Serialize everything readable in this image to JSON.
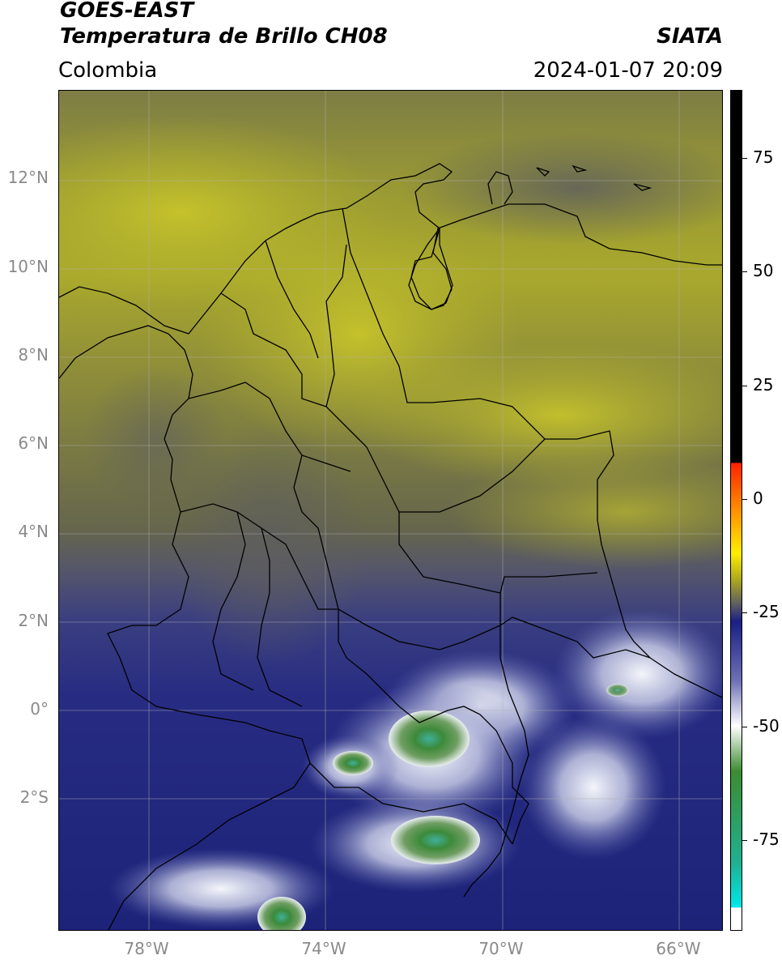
{
  "header": {
    "satellite": "GOES-EAST",
    "product": "Temperatura de Brillo CH08",
    "region": "Colombia",
    "org": "SIATA",
    "datetime": "2024-01-07 20:09"
  },
  "map": {
    "lat_range": [
      -5.0,
      14.0
    ],
    "lon_range": [
      -80.0,
      -65.0
    ],
    "grid": true,
    "y_ticks": [
      {
        "lat": 12,
        "label": "12°N"
      },
      {
        "lat": 10,
        "label": "10°N"
      },
      {
        "lat": 8,
        "label": "8°N"
      },
      {
        "lat": 6,
        "label": "6°N"
      },
      {
        "lat": 4,
        "label": "4°N"
      },
      {
        "lat": 2,
        "label": "2°N"
      },
      {
        "lat": 0,
        "label": "0°"
      },
      {
        "lat": -2,
        "label": "2°S"
      }
    ],
    "x_ticks": [
      {
        "lon": -78,
        "label": "78°W"
      },
      {
        "lon": -74,
        "label": "74°W"
      },
      {
        "lon": -70,
        "label": "70°W"
      },
      {
        "lon": -66,
        "label": "66°W"
      }
    ],
    "colors": {
      "warm_yellow": "#b5b42a",
      "olive": "#8a8a40",
      "gray": "#5a5a5a",
      "slate_blue": "#3f4383",
      "deep_blue": "#1d237c",
      "white_cloud": "#e6e9f4",
      "green_core": "#3c8a3a",
      "teal_core": "#34b59a"
    }
  },
  "colorbar": {
    "range": [
      -95,
      90
    ],
    "ticks": [
      {
        "value": 75,
        "label": "75"
      },
      {
        "value": 50,
        "label": "50"
      },
      {
        "value": 25,
        "label": "25"
      },
      {
        "value": 0,
        "label": "0"
      },
      {
        "value": -25,
        "label": "-25"
      },
      {
        "value": -50,
        "label": "-50"
      },
      {
        "value": -75,
        "label": "-75"
      }
    ],
    "stops": [
      {
        "value": 90,
        "color": "#000000"
      },
      {
        "value": 8,
        "color": "#000000"
      },
      {
        "value": 7.9,
        "color": "#ff2200"
      },
      {
        "value": 0,
        "color": "#ff7700"
      },
      {
        "value": -12,
        "color": "#ffee00"
      },
      {
        "value": -18,
        "color": "#aaa420"
      },
      {
        "value": -23,
        "color": "#606060"
      },
      {
        "value": -27,
        "color": "#1a1f85"
      },
      {
        "value": -40,
        "color": "#6c70b4"
      },
      {
        "value": -50,
        "color": "#ffffff"
      },
      {
        "value": -60,
        "color": "#3c8c30"
      },
      {
        "value": -80,
        "color": "#20b090"
      },
      {
        "value": -90,
        "color": "#00e8e8"
      },
      {
        "value": -90.1,
        "color": "#ffffff"
      },
      {
        "value": -95,
        "color": "#ffffff"
      }
    ]
  }
}
